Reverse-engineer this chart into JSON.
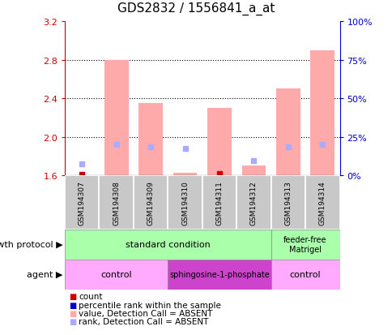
{
  "title": "GDS2832 / 1556841_a_at",
  "samples": [
    "GSM194307",
    "GSM194308",
    "GSM194309",
    "GSM194310",
    "GSM194311",
    "GSM194312",
    "GSM194313",
    "GSM194314"
  ],
  "bar_values": [
    null,
    2.8,
    2.35,
    1.63,
    2.3,
    1.7,
    2.5,
    2.9
  ],
  "bar_color": "#ffaaaa",
  "rank_values": [
    1.72,
    1.92,
    1.9,
    1.88,
    1.62,
    1.75,
    1.9,
    1.92
  ],
  "rank_color": "#aaaaff",
  "count_values": [
    1.61,
    null,
    null,
    null,
    1.62,
    null,
    null,
    null
  ],
  "count_color": "#cc0000",
  "ylim": [
    1.6,
    3.2
  ],
  "yticks": [
    1.6,
    2.0,
    2.4,
    2.8,
    3.2
  ],
  "y2ticks": [
    0,
    25,
    50,
    75,
    100
  ],
  "y2labels": [
    "0%",
    "25%",
    "50%",
    "75%",
    "100%"
  ],
  "axis_color_left": "#cc0000",
  "axis_color_right": "#0000cc",
  "bg_color": "#ffffff",
  "sample_bg_color": "#c8c8c8",
  "growth_protocol_label": "growth protocol",
  "agent_label": "agent",
  "gp_groups": [
    {
      "label": "standard condition",
      "start": 0,
      "end": 6,
      "color": "#aaffaa"
    },
    {
      "label": "feeder-free\nMatrigel",
      "start": 6,
      "end": 8,
      "color": "#aaffaa"
    }
  ],
  "agent_groups": [
    {
      "label": "control",
      "start": 0,
      "end": 3,
      "color": "#ffaaff"
    },
    {
      "label": "sphingosine-1-phosphate",
      "start": 3,
      "end": 6,
      "color": "#cc44cc"
    },
    {
      "label": "control",
      "start": 6,
      "end": 8,
      "color": "#ffaaff"
    }
  ],
  "legend_items": [
    {
      "label": "count",
      "color": "#cc0000"
    },
    {
      "label": "percentile rank within the sample",
      "color": "#0000cc"
    },
    {
      "label": "value, Detection Call = ABSENT",
      "color": "#ffaaaa"
    },
    {
      "label": "rank, Detection Call = ABSENT",
      "color": "#aaaaff"
    }
  ]
}
